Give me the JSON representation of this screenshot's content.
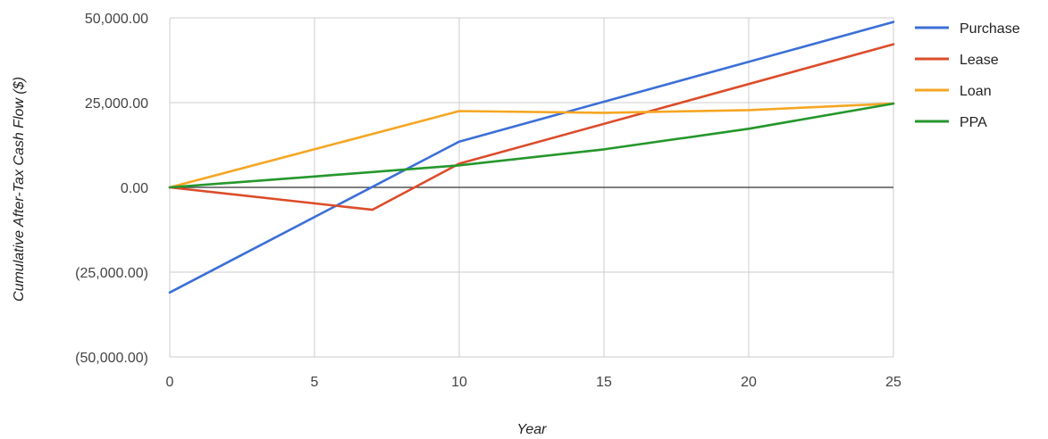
{
  "chart_data": {
    "type": "line",
    "xlabel": "Year",
    "ylabel": "Cumulative After-Tax Cash Flow ($)",
    "xlim": [
      0,
      25
    ],
    "ylim": [
      -50000,
      50000
    ],
    "x_ticks": [
      0,
      5,
      10,
      15,
      20,
      25
    ],
    "x_tick_labels": [
      "0",
      "5",
      "10",
      "15",
      "20",
      "25"
    ],
    "y_ticks": [
      50000,
      25000,
      0,
      -25000,
      -50000
    ],
    "y_tick_labels": [
      "50,000.00",
      "25,000.00",
      "0.00",
      "(25,000.00)",
      "(50,000.00)"
    ],
    "grid": true,
    "legend_position": "right",
    "series": [
      {
        "name": "Purchase",
        "color": "#3c6fd6",
        "x": [
          0,
          10,
          25
        ],
        "y": [
          -31000,
          13500,
          48800
        ]
      },
      {
        "name": "Lease",
        "color": "#dc4c2a",
        "x": [
          0,
          7,
          10,
          25
        ],
        "y": [
          0,
          -6600,
          7000,
          42200
        ]
      },
      {
        "name": "Loan",
        "color": "#f5a623",
        "x": [
          0,
          10,
          15,
          20,
          25
        ],
        "y": [
          0,
          22500,
          22000,
          22800,
          24700
        ]
      },
      {
        "name": "PPA",
        "color": "#25972c",
        "x": [
          0,
          5,
          10,
          15,
          20,
          25
        ],
        "y": [
          0,
          3200,
          6500,
          11200,
          17300,
          24700
        ]
      }
    ]
  }
}
